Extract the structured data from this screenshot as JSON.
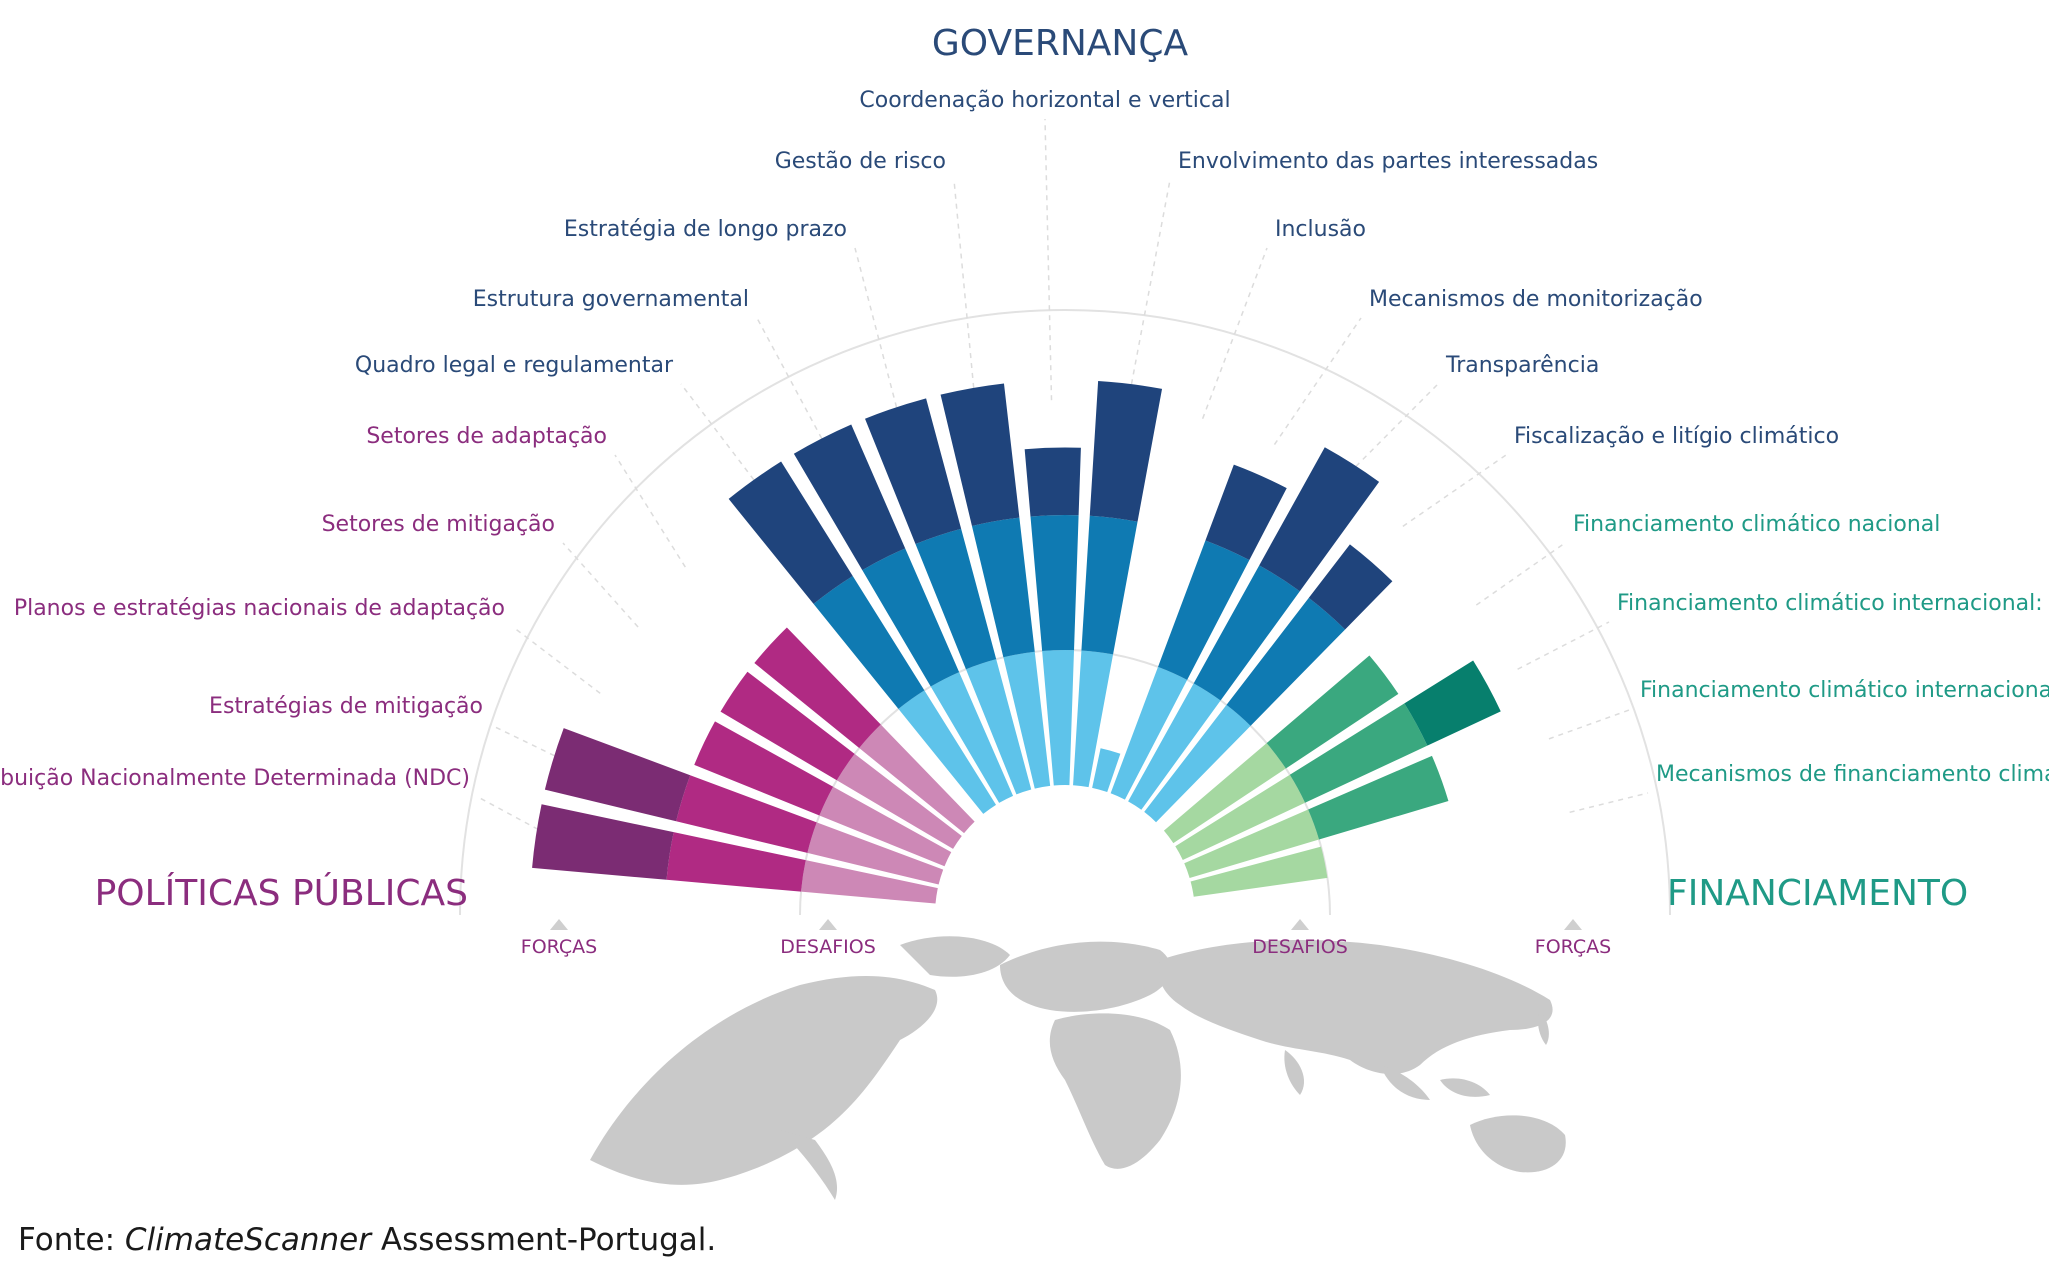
{
  "chart_data": {
    "type": "radial-bar",
    "title": "",
    "groups": [
      {
        "name": "POLÍTICAS PÚBLICAS",
        "color": "#7b2c73"
      },
      {
        "name": "GOVERNANÇA",
        "color": "#264577"
      },
      {
        "name": "FINANCIAMENTO",
        "color": "#1f9a86"
      }
    ],
    "axis_marks": [
      "FORÇAS",
      "DESAFIOS",
      "DESAFIOS",
      "FORÇAS"
    ],
    "bars": [
      {
        "label": "Contribuição Nacionalmente Determinada (NDC)",
        "group": "POLÍTICAS PÚBLICAS",
        "segments": [
          1.0,
          1.0,
          1.0
        ]
      },
      {
        "label": "Estratégias de mitigação",
        "group": "POLÍTICAS PÚBLICAS",
        "segments": [
          1.0,
          1.0,
          1.0
        ]
      },
      {
        "label": "Planos e estratégias nacionais de adaptação",
        "group": "POLÍTICAS PÚBLICAS",
        "segments": [
          1.0,
          1.0,
          0.0
        ]
      },
      {
        "label": "Setores de mitigação",
        "group": "POLÍTICAS PÚBLICAS",
        "segments": [
          1.0,
          1.0,
          0.0
        ]
      },
      {
        "label": "Setores de adaptação",
        "group": "POLÍTICAS PÚBLICAS",
        "segments": [
          1.0,
          1.0,
          0.0
        ]
      },
      {
        "label": "Quadro legal e regulamentar",
        "group": "GOVERNANÇA",
        "segments": [
          1.0,
          1.0,
          1.0
        ]
      },
      {
        "label": "Estrutura governamental",
        "group": "GOVERNANÇA",
        "segments": [
          1.0,
          1.0,
          1.0
        ]
      },
      {
        "label": "Estratégia de longo prazo",
        "group": "GOVERNANÇA",
        "segments": [
          1.0,
          1.0,
          1.0
        ]
      },
      {
        "label": "Gestão de risco",
        "group": "GOVERNANÇA",
        "segments": [
          1.0,
          1.0,
          1.0
        ]
      },
      {
        "label": "Coordenação horizontal e vertical",
        "group": "GOVERNANÇA",
        "segments": [
          1.0,
          1.0,
          0.5
        ]
      },
      {
        "label": "Envolvimento das partes interessadas",
        "group": "GOVERNANÇA",
        "segments": [
          1.0,
          1.0,
          1.0
        ]
      },
      {
        "label": "Inclusão",
        "group": "GOVERNANÇA",
        "segments": [
          0.3,
          0.0,
          0.0
        ]
      },
      {
        "label": "Mecanismos de monitorização",
        "group": "GOVERNANÇA",
        "segments": [
          1.0,
          1.0,
          0.6
        ]
      },
      {
        "label": "Transparência",
        "group": "GOVERNANÇA",
        "segments": [
          1.0,
          1.0,
          1.0
        ]
      },
      {
        "label": "Fiscalização e litígio climático",
        "group": "GOVERNANÇA",
        "segments": [
          1.0,
          1.0,
          0.5
        ]
      },
      {
        "label": "Financiamento climático nacional",
        "group": "FINANCIAMENTO",
        "segments": [
          1.0,
          1.0,
          0.0
        ]
      },
      {
        "label": "Financiamento climático internacional: países doadores",
        "group": "FINANCIAMENTO",
        "segments": [
          1.0,
          1.0,
          0.6
        ]
      },
      {
        "label": "Financiamento climático internacional: países beneficiários",
        "group": "FINANCIAMENTO",
        "segments": [
          1.0,
          1.0,
          0.0
        ]
      },
      {
        "label": "Mecanismos de financiamento climático privado nacional e internacional",
        "group": "FINANCIAMENTO",
        "segments": [
          1.0,
          0.0,
          0.0
        ]
      }
    ]
  },
  "colors": {
    "politicas": [
      "#cd88b6",
      "#b02a83",
      "#7b2c73"
    ],
    "governanca": [
      "#5ec3ea",
      "#0f7ab2",
      "#1f447c"
    ],
    "financiamento": [
      "#a5d8a1",
      "#3aa87f",
      "#077f6d"
    ],
    "label_politicas": "#8b2d7e",
    "label_governanca": "#2a4a78",
    "label_financiamento": "#1f9a86",
    "axis_marker": "#8b2d7e",
    "map": "#c9c9c9"
  },
  "source": {
    "prefix": "Fonte:",
    "title": "ClimateScanner",
    "suffix": "Assessment-Portugal."
  }
}
